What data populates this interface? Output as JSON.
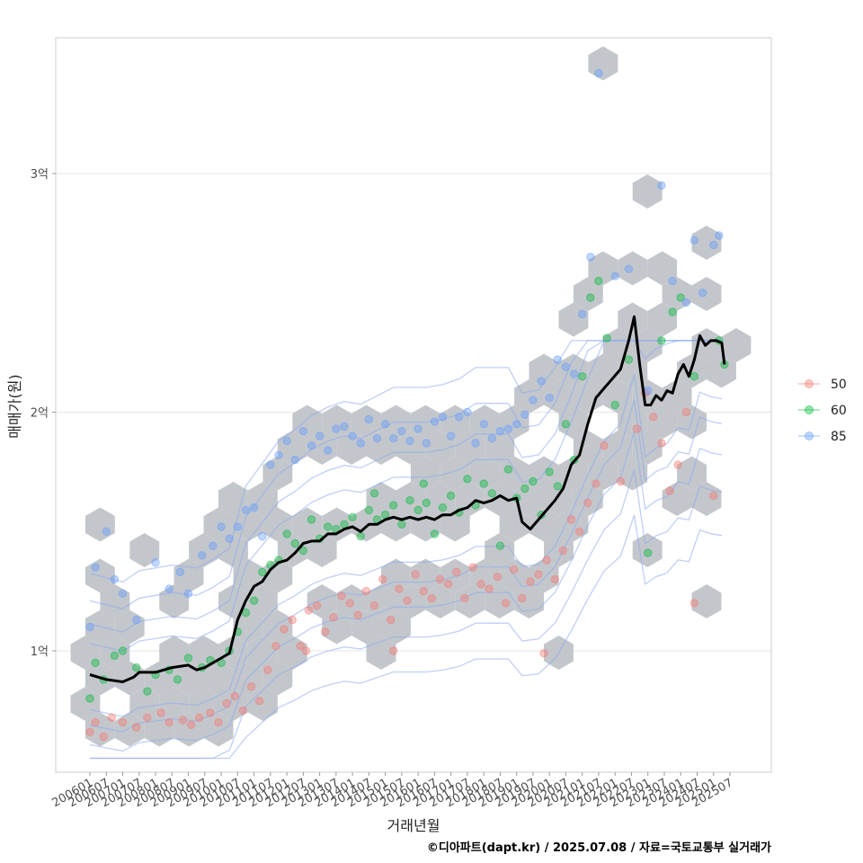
{
  "chart_data": {
    "type": "scatter",
    "title": "",
    "xlabel": "거래년월",
    "ylabel": "매매가(원)",
    "caption": "©디아파트(dapt.kr) / 2025.07.08 / 자료=국토교통부 실거래가",
    "x_ticks": [
      "200601",
      "200607",
      "200701",
      "200707",
      "200801",
      "200807",
      "200901",
      "200907",
      "201001",
      "201007",
      "201101",
      "201107",
      "201201",
      "201207",
      "201301",
      "201307",
      "201401",
      "201407",
      "201501",
      "201507",
      "201601",
      "201607",
      "201701",
      "201707",
      "201801",
      "201807",
      "201901",
      "201907",
      "202001",
      "202007",
      "202101",
      "202107",
      "202201",
      "202207",
      "202301",
      "202307",
      "202401",
      "202407",
      "202501",
      "202507"
    ],
    "y_ticks": [
      {
        "label": "1억",
        "value": 1.0
      },
      {
        "label": "2억",
        "value": 2.0
      },
      {
        "label": "3억",
        "value": 3.0
      }
    ],
    "y_unit": "억",
    "ylim": [
      0.5,
      3.57
    ],
    "grid": true,
    "legend_position": "right",
    "legend": [
      {
        "name": "50",
        "color": "#f8766d"
      },
      {
        "name": "60",
        "color": "#00ba38"
      },
      {
        "name": "85",
        "color": "#619cff"
      }
    ],
    "trend_line": {
      "name": "median",
      "color": "#000000",
      "points": [
        [
          "2006-01",
          0.9
        ],
        [
          "2006-07",
          0.88
        ],
        [
          "2007-01",
          0.87
        ],
        [
          "2007-05",
          0.89
        ],
        [
          "2007-07",
          0.91
        ],
        [
          "2008-01",
          0.91
        ],
        [
          "2008-07",
          0.93
        ],
        [
          "2009-01",
          0.94
        ],
        [
          "2009-04",
          0.92
        ],
        [
          "2009-07",
          0.93
        ],
        [
          "2009-10",
          0.95
        ],
        [
          "2010-01",
          0.97
        ],
        [
          "2010-04",
          0.99
        ],
        [
          "2010-07",
          1.13
        ],
        [
          "2010-10",
          1.21
        ],
        [
          "2011-01",
          1.27
        ],
        [
          "2011-04",
          1.29
        ],
        [
          "2011-07",
          1.34
        ],
        [
          "2011-10",
          1.37
        ],
        [
          "2012-01",
          1.38
        ],
        [
          "2012-04",
          1.41
        ],
        [
          "2012-07",
          1.45
        ],
        [
          "2012-10",
          1.46
        ],
        [
          "2013-01",
          1.46
        ],
        [
          "2013-04",
          1.49
        ],
        [
          "2013-07",
          1.49
        ],
        [
          "2013-10",
          1.51
        ],
        [
          "2014-01",
          1.52
        ],
        [
          "2014-04",
          1.5
        ],
        [
          "2014-07",
          1.53
        ],
        [
          "2014-10",
          1.53
        ],
        [
          "2015-01",
          1.55
        ],
        [
          "2015-04",
          1.56
        ],
        [
          "2015-07",
          1.55
        ],
        [
          "2015-10",
          1.56
        ],
        [
          "2016-01",
          1.55
        ],
        [
          "2016-04",
          1.56
        ],
        [
          "2016-07",
          1.55
        ],
        [
          "2016-10",
          1.57
        ],
        [
          "2017-01",
          1.57
        ],
        [
          "2017-04",
          1.59
        ],
        [
          "2017-07",
          1.6
        ],
        [
          "2017-10",
          1.63
        ],
        [
          "2018-01",
          1.62
        ],
        [
          "2018-04",
          1.63
        ],
        [
          "2018-07",
          1.65
        ],
        [
          "2018-10",
          1.63
        ],
        [
          "2019-01",
          1.64
        ],
        [
          "2019-03",
          1.54
        ],
        [
          "2019-06",
          1.51
        ],
        [
          "2019-09",
          1.55
        ],
        [
          "2019-12",
          1.59
        ],
        [
          "2020-03",
          1.63
        ],
        [
          "2020-06",
          1.68
        ],
        [
          "2020-09",
          1.78
        ],
        [
          "2020-12",
          1.82
        ],
        [
          "2021-03",
          1.95
        ],
        [
          "2021-06",
          2.06
        ],
        [
          "2021-09",
          2.1
        ],
        [
          "2021-12",
          2.14
        ],
        [
          "2022-03",
          2.18
        ],
        [
          "2022-06",
          2.3
        ],
        [
          "2022-08",
          2.4
        ],
        [
          "2022-10",
          2.2
        ],
        [
          "2022-12",
          2.03
        ],
        [
          "2023-02",
          2.03
        ],
        [
          "2023-04",
          2.07
        ],
        [
          "2023-06",
          2.05
        ],
        [
          "2023-08",
          2.09
        ],
        [
          "2023-10",
          2.08
        ],
        [
          "2023-12",
          2.16
        ],
        [
          "2024-02",
          2.2
        ],
        [
          "2024-04",
          2.15
        ],
        [
          "2024-06",
          2.22
        ],
        [
          "2024-08",
          2.32
        ],
        [
          "2024-10",
          2.28
        ],
        [
          "2024-12",
          2.3
        ],
        [
          "2025-02",
          2.3
        ],
        [
          "2025-04",
          2.29
        ],
        [
          "2025-05",
          2.2
        ]
      ]
    },
    "points": {
      "50": [
        [
          "2006-01",
          0.66
        ],
        [
          "2006-03",
          0.7
        ],
        [
          "2006-06",
          0.64
        ],
        [
          "2006-09",
          0.72
        ],
        [
          "2007-01",
          0.7
        ],
        [
          "2007-06",
          0.68
        ],
        [
          "2007-10",
          0.72
        ],
        [
          "2008-03",
          0.74
        ],
        [
          "2008-06",
          0.7
        ],
        [
          "2008-11",
          0.71
        ],
        [
          "2009-02",
          0.69
        ],
        [
          "2009-05",
          0.72
        ],
        [
          "2009-09",
          0.74
        ],
        [
          "2009-12",
          0.7
        ],
        [
          "2010-03",
          0.78
        ],
        [
          "2010-06",
          0.81
        ],
        [
          "2010-09",
          0.75
        ],
        [
          "2010-12",
          0.85
        ],
        [
          "2011-03",
          0.79
        ],
        [
          "2011-06",
          0.92
        ],
        [
          "2011-09",
          1.02
        ],
        [
          "2011-12",
          1.09
        ],
        [
          "2012-03",
          1.13
        ],
        [
          "2012-06",
          1.02
        ],
        [
          "2012-09",
          1.17
        ],
        [
          "2012-12",
          1.19
        ],
        [
          "2013-03",
          1.08
        ],
        [
          "2013-06",
          1.14
        ],
        [
          "2013-09",
          1.23
        ],
        [
          "2013-12",
          1.2
        ],
        [
          "2014-03",
          1.15
        ],
        [
          "2014-06",
          1.25
        ],
        [
          "2014-09",
          1.19
        ],
        [
          "2014-12",
          1.3
        ],
        [
          "2015-03",
          1.13
        ],
        [
          "2015-06",
          1.26
        ],
        [
          "2015-09",
          1.21
        ],
        [
          "2015-12",
          1.32
        ],
        [
          "2016-03",
          1.25
        ],
        [
          "2016-06",
          1.22
        ],
        [
          "2016-09",
          1.3
        ],
        [
          "2016-12",
          1.28
        ],
        [
          "2017-03",
          1.33
        ],
        [
          "2017-06",
          1.22
        ],
        [
          "2017-09",
          1.35
        ],
        [
          "2017-12",
          1.28
        ],
        [
          "2018-03",
          1.26
        ],
        [
          "2018-06",
          1.31
        ],
        [
          "2018-09",
          1.2
        ],
        [
          "2018-12",
          1.34
        ],
        [
          "2019-03",
          1.22
        ],
        [
          "2019-06",
          1.29
        ],
        [
          "2019-09",
          1.32
        ],
        [
          "2019-12",
          1.38
        ],
        [
          "2020-03",
          1.3
        ],
        [
          "2020-06",
          1.42
        ],
        [
          "2020-09",
          1.55
        ],
        [
          "2020-12",
          1.5
        ],
        [
          "2021-03",
          1.62
        ],
        [
          "2021-06",
          1.7
        ],
        [
          "2021-09",
          1.86
        ],
        [
          "2022-03",
          1.71
        ],
        [
          "2022-09",
          1.93
        ],
        [
          "2022-12",
          2.08
        ],
        [
          "2023-03",
          1.98
        ],
        [
          "2023-06",
          1.87
        ],
        [
          "2023-09",
          1.67
        ],
        [
          "2023-12",
          1.78
        ],
        [
          "2024-03",
          2.0
        ],
        [
          "2024-06",
          1.2
        ],
        [
          "2025-01",
          1.65
        ],
        [
          "2015-04",
          1.0
        ],
        [
          "2012-08",
          1.0
        ],
        [
          "2019-11",
          0.99
        ]
      ],
      "60": [
        [
          "2006-01",
          0.8
        ],
        [
          "2006-03",
          0.95
        ],
        [
          "2006-06",
          0.88
        ],
        [
          "2006-10",
          0.98
        ],
        [
          "2007-01",
          1.0
        ],
        [
          "2007-06",
          0.93
        ],
        [
          "2007-10",
          0.83
        ],
        [
          "2008-01",
          0.9
        ],
        [
          "2008-06",
          0.92
        ],
        [
          "2008-09",
          0.88
        ],
        [
          "2009-01",
          0.97
        ],
        [
          "2009-06",
          0.93
        ],
        [
          "2009-09",
          0.96
        ],
        [
          "2010-01",
          0.95
        ],
        [
          "2010-04",
          1.0
        ],
        [
          "2010-07",
          1.08
        ],
        [
          "2010-10",
          1.16
        ],
        [
          "2011-01",
          1.21
        ],
        [
          "2011-04",
          1.33
        ],
        [
          "2011-07",
          1.36
        ],
        [
          "2011-10",
          1.38
        ],
        [
          "2012-01",
          1.49
        ],
        [
          "2012-04",
          1.45
        ],
        [
          "2012-07",
          1.42
        ],
        [
          "2012-10",
          1.55
        ],
        [
          "2013-01",
          1.47
        ],
        [
          "2013-04",
          1.52
        ],
        [
          "2013-07",
          1.51
        ],
        [
          "2013-10",
          1.53
        ],
        [
          "2014-01",
          1.56
        ],
        [
          "2014-04",
          1.48
        ],
        [
          "2014-07",
          1.59
        ],
        [
          "2014-10",
          1.55
        ],
        [
          "2015-01",
          1.57
        ],
        [
          "2015-04",
          1.61
        ],
        [
          "2015-07",
          1.53
        ],
        [
          "2015-10",
          1.63
        ],
        [
          "2016-01",
          1.59
        ],
        [
          "2016-04",
          1.62
        ],
        [
          "2016-07",
          1.49
        ],
        [
          "2016-10",
          1.6
        ],
        [
          "2017-01",
          1.65
        ],
        [
          "2017-04",
          1.58
        ],
        [
          "2017-07",
          1.72
        ],
        [
          "2017-10",
          1.61
        ],
        [
          "2018-01",
          1.7
        ],
        [
          "2018-04",
          1.66
        ],
        [
          "2018-07",
          1.44
        ],
        [
          "2018-10",
          1.76
        ],
        [
          "2019-01",
          1.64
        ],
        [
          "2019-04",
          1.68
        ],
        [
          "2019-07",
          1.71
        ],
        [
          "2019-10",
          1.57
        ],
        [
          "2020-01",
          1.75
        ],
        [
          "2020-04",
          1.69
        ],
        [
          "2020-07",
          1.95
        ],
        [
          "2020-10",
          1.8
        ],
        [
          "2021-01",
          2.15
        ],
        [
          "2021-04",
          2.48
        ],
        [
          "2021-07",
          2.55
        ],
        [
          "2021-10",
          2.31
        ],
        [
          "2022-01",
          2.03
        ],
        [
          "2022-06",
          2.22
        ],
        [
          "2023-01",
          1.41
        ],
        [
          "2023-06",
          2.3
        ],
        [
          "2023-10",
          2.42
        ],
        [
          "2024-01",
          2.48
        ],
        [
          "2024-06",
          2.15
        ],
        [
          "2025-03",
          2.3
        ],
        [
          "2025-05",
          2.2
        ],
        [
          "2016-03",
          1.7
        ],
        [
          "2014-09",
          1.66
        ]
      ],
      "85": [
        [
          "2006-01",
          1.1
        ],
        [
          "2006-03",
          1.35
        ],
        [
          "2006-07",
          1.5
        ],
        [
          "2006-10",
          1.3
        ],
        [
          "2007-01",
          1.24
        ],
        [
          "2007-06",
          1.13
        ],
        [
          "2008-01",
          1.37
        ],
        [
          "2008-06",
          1.26
        ],
        [
          "2008-10",
          1.33
        ],
        [
          "2009-01",
          1.24
        ],
        [
          "2009-06",
          1.4
        ],
        [
          "2009-10",
          1.44
        ],
        [
          "2010-01",
          1.52
        ],
        [
          "2010-04",
          1.47
        ],
        [
          "2010-07",
          1.52
        ],
        [
          "2010-10",
          1.59
        ],
        [
          "2011-01",
          1.6
        ],
        [
          "2011-04",
          1.48
        ],
        [
          "2011-07",
          1.78
        ],
        [
          "2011-10",
          1.82
        ],
        [
          "2012-01",
          1.88
        ],
        [
          "2012-04",
          1.8
        ],
        [
          "2012-07",
          1.92
        ],
        [
          "2012-10",
          1.86
        ],
        [
          "2013-01",
          1.9
        ],
        [
          "2013-04",
          1.84
        ],
        [
          "2013-07",
          1.93
        ],
        [
          "2013-10",
          1.94
        ],
        [
          "2014-01",
          1.9
        ],
        [
          "2014-04",
          1.87
        ],
        [
          "2014-07",
          1.97
        ],
        [
          "2014-10",
          1.89
        ],
        [
          "2015-01",
          1.95
        ],
        [
          "2015-04",
          1.89
        ],
        [
          "2015-07",
          1.92
        ],
        [
          "2015-10",
          1.88
        ],
        [
          "2016-01",
          1.93
        ],
        [
          "2016-04",
          1.87
        ],
        [
          "2016-07",
          1.96
        ],
        [
          "2016-10",
          1.98
        ],
        [
          "2017-01",
          1.9
        ],
        [
          "2017-04",
          1.98
        ],
        [
          "2017-07",
          2.0
        ],
        [
          "2017-10",
          1.87
        ],
        [
          "2018-01",
          1.95
        ],
        [
          "2018-04",
          1.89
        ],
        [
          "2018-07",
          1.92
        ],
        [
          "2018-10",
          1.93
        ],
        [
          "2019-01",
          1.95
        ],
        [
          "2019-04",
          1.99
        ],
        [
          "2019-07",
          2.05
        ],
        [
          "2019-10",
          2.13
        ],
        [
          "2020-01",
          2.06
        ],
        [
          "2020-04",
          2.22
        ],
        [
          "2020-07",
          2.19
        ],
        [
          "2020-10",
          2.16
        ],
        [
          "2021-01",
          2.41
        ],
        [
          "2021-04",
          2.65
        ],
        [
          "2021-07",
          3.42
        ],
        [
          "2022-01",
          2.57
        ],
        [
          "2022-06",
          2.6
        ],
        [
          "2023-06",
          2.95
        ],
        [
          "2023-10",
          2.55
        ],
        [
          "2024-03",
          2.46
        ],
        [
          "2024-06",
          2.72
        ],
        [
          "2024-09",
          2.5
        ],
        [
          "2025-01",
          2.7
        ],
        [
          "2025-03",
          2.74
        ],
        [
          "2023-01",
          2.09
        ]
      ]
    }
  }
}
